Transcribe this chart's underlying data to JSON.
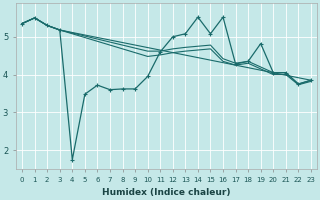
{
  "xlabel": "Humidex (Indice chaleur)",
  "bg_color": "#c5e8e8",
  "line_color": "#1a6b6b",
  "xlim": [
    -0.5,
    23.5
  ],
  "ylim": [
    1.5,
    5.9
  ],
  "yticks": [
    2,
    3,
    4,
    5
  ],
  "xticks": [
    0,
    1,
    2,
    3,
    4,
    5,
    6,
    7,
    8,
    9,
    10,
    11,
    12,
    13,
    14,
    15,
    16,
    17,
    18,
    19,
    20,
    21,
    22,
    23
  ],
  "main_series": [
    [
      0,
      5.35
    ],
    [
      1,
      5.5
    ],
    [
      2,
      5.3
    ],
    [
      3,
      5.18
    ],
    [
      4,
      1.75
    ],
    [
      5,
      3.48
    ],
    [
      6,
      3.72
    ],
    [
      7,
      3.6
    ],
    [
      8,
      3.62
    ],
    [
      9,
      3.62
    ],
    [
      10,
      3.95
    ],
    [
      11,
      4.6
    ],
    [
      12,
      5.0
    ],
    [
      13,
      5.08
    ],
    [
      14,
      5.52
    ],
    [
      15,
      5.08
    ],
    [
      16,
      5.52
    ],
    [
      17,
      4.28
    ],
    [
      18,
      4.35
    ],
    [
      19,
      4.82
    ],
    [
      20,
      4.05
    ],
    [
      21,
      4.05
    ],
    [
      22,
      3.75
    ],
    [
      23,
      3.85
    ]
  ],
  "trend1": [
    [
      0,
      5.35
    ],
    [
      1,
      5.5
    ],
    [
      2,
      5.3
    ],
    [
      3,
      5.18
    ],
    [
      23,
      3.85
    ]
  ],
  "trend2": [
    [
      0,
      5.35
    ],
    [
      1,
      5.5
    ],
    [
      2,
      5.3
    ],
    [
      3,
      5.18
    ],
    [
      10,
      4.62
    ],
    [
      11,
      4.62
    ],
    [
      12,
      4.68
    ],
    [
      13,
      4.72
    ],
    [
      14,
      4.75
    ],
    [
      15,
      4.78
    ],
    [
      16,
      4.42
    ],
    [
      17,
      4.3
    ],
    [
      18,
      4.35
    ],
    [
      19,
      4.2
    ],
    [
      20,
      4.05
    ],
    [
      21,
      4.05
    ],
    [
      22,
      3.75
    ],
    [
      23,
      3.85
    ]
  ],
  "trend3": [
    [
      0,
      5.35
    ],
    [
      1,
      5.5
    ],
    [
      2,
      5.3
    ],
    [
      3,
      5.18
    ],
    [
      10,
      4.48
    ],
    [
      11,
      4.52
    ],
    [
      12,
      4.58
    ],
    [
      13,
      4.62
    ],
    [
      14,
      4.65
    ],
    [
      15,
      4.68
    ],
    [
      16,
      4.35
    ],
    [
      17,
      4.25
    ],
    [
      18,
      4.3
    ],
    [
      19,
      4.15
    ],
    [
      20,
      4.0
    ],
    [
      21,
      4.0
    ],
    [
      22,
      3.73
    ],
    [
      23,
      3.82
    ]
  ]
}
